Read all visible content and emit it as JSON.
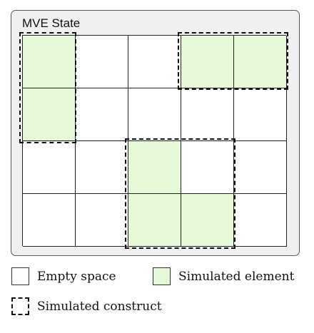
{
  "title": "MVE State",
  "grid": {
    "rows": 4,
    "cols": 5,
    "simulated_cells": [
      [
        0,
        0
      ],
      [
        1,
        0
      ],
      [
        0,
        3
      ],
      [
        0,
        4
      ],
      [
        2,
        2
      ],
      [
        3,
        2
      ],
      [
        3,
        3
      ]
    ]
  },
  "constructs": [
    {
      "name": "construct-left-column",
      "cells": [
        [
          0,
          0
        ],
        [
          1,
          0
        ]
      ]
    },
    {
      "name": "construct-top-right",
      "cells": [
        [
          0,
          3
        ],
        [
          0,
          4
        ]
      ]
    },
    {
      "name": "construct-bottom-middle",
      "cells": [
        [
          2,
          2
        ],
        [
          3,
          2
        ],
        [
          3,
          3
        ]
      ]
    }
  ],
  "legend": {
    "empty_label": "Empty space",
    "simulated_label": "Simulated element",
    "construct_label": "Simulated construct"
  },
  "colors": {
    "simulated_fill": "#e5f8d8",
    "empty_fill": "#ffffff",
    "panel_bg": "#f0f0f0"
  }
}
